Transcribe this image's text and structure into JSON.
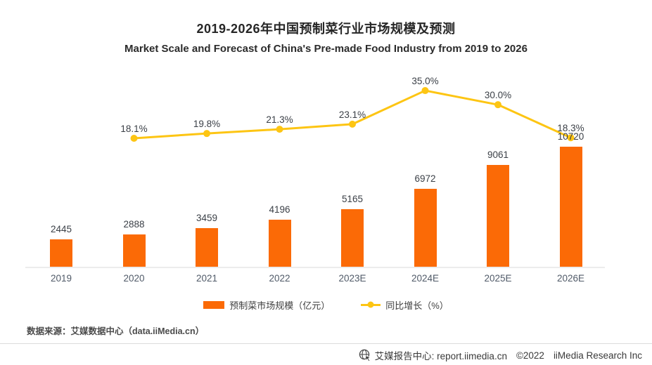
{
  "header": {
    "title": "2019-2026年中国预制菜行业市场规模及预测",
    "subtitle": "Market Scale and Forecast of China's Pre-made Food Industry from 2019 to 2026"
  },
  "chart_data": {
    "type": "bar",
    "title": "2019-2026年中国预制菜行业市场规模及预测",
    "subtitle": "Market Scale and Forecast of China's Pre-made Food Industry from 2019 to 2026",
    "categories": [
      "2019",
      "2020",
      "2021",
      "2022",
      "2023E",
      "2024E",
      "2025E",
      "2026E"
    ],
    "series": [
      {
        "name": "预制菜市场规模（亿元）",
        "type": "bar",
        "unit": "亿元",
        "values": [
          2445,
          2888,
          3459,
          4196,
          5165,
          6972,
          9061,
          10720
        ]
      },
      {
        "name": "同比增长（%）",
        "type": "line",
        "unit": "%",
        "values": [
          null,
          18.1,
          19.8,
          21.3,
          23.1,
          35.0,
          30.0,
          18.3
        ]
      }
    ],
    "value_labels": true,
    "grid": false,
    "legend_position": "bottom",
    "xlabel": "",
    "ylabel": ""
  },
  "colors": {
    "bar": "#fb6a06",
    "line": "#fdc513",
    "axis": "#ececec",
    "value_text": "#3a3f46",
    "tick_text": "#505a68"
  },
  "footer": {
    "source": "数据来源：艾媒数据中心（data.iiMedia.cn）",
    "report_center": "艾媒报告中心: report.iimedia.cn",
    "copyright": "©2022",
    "company": "iiMedia Research Inc"
  }
}
